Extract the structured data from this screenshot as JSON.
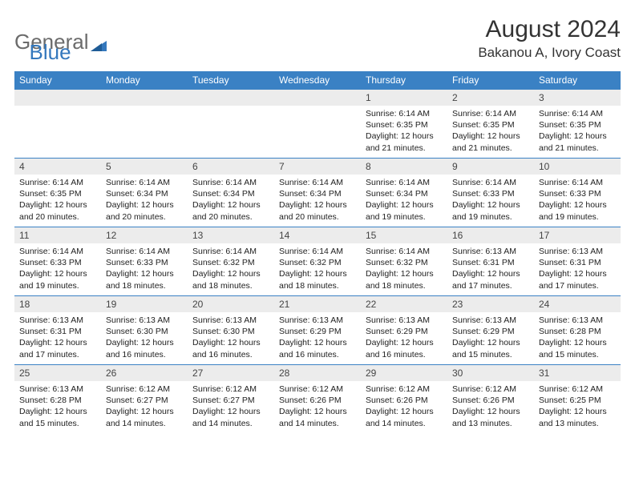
{
  "logo": {
    "text1": "General",
    "text2": "Blue"
  },
  "title": "August 2024",
  "location": "Bakanou A, Ivory Coast",
  "colors": {
    "header_bg": "#3a81c4",
    "header_text": "#ffffff",
    "daynum_bg": "#ececec",
    "border": "#3a81c4",
    "logo_gray": "#6b6b6b",
    "logo_blue": "#3478bd"
  },
  "day_headers": [
    "Sunday",
    "Monday",
    "Tuesday",
    "Wednesday",
    "Thursday",
    "Friday",
    "Saturday"
  ],
  "weeks": [
    [
      null,
      null,
      null,
      null,
      {
        "n": "1",
        "sr": "6:14 AM",
        "ss": "6:35 PM",
        "dl": "12 hours and 21 minutes."
      },
      {
        "n": "2",
        "sr": "6:14 AM",
        "ss": "6:35 PM",
        "dl": "12 hours and 21 minutes."
      },
      {
        "n": "3",
        "sr": "6:14 AM",
        "ss": "6:35 PM",
        "dl": "12 hours and 21 minutes."
      }
    ],
    [
      {
        "n": "4",
        "sr": "6:14 AM",
        "ss": "6:35 PM",
        "dl": "12 hours and 20 minutes."
      },
      {
        "n": "5",
        "sr": "6:14 AM",
        "ss": "6:34 PM",
        "dl": "12 hours and 20 minutes."
      },
      {
        "n": "6",
        "sr": "6:14 AM",
        "ss": "6:34 PM",
        "dl": "12 hours and 20 minutes."
      },
      {
        "n": "7",
        "sr": "6:14 AM",
        "ss": "6:34 PM",
        "dl": "12 hours and 20 minutes."
      },
      {
        "n": "8",
        "sr": "6:14 AM",
        "ss": "6:34 PM",
        "dl": "12 hours and 19 minutes."
      },
      {
        "n": "9",
        "sr": "6:14 AM",
        "ss": "6:33 PM",
        "dl": "12 hours and 19 minutes."
      },
      {
        "n": "10",
        "sr": "6:14 AM",
        "ss": "6:33 PM",
        "dl": "12 hours and 19 minutes."
      }
    ],
    [
      {
        "n": "11",
        "sr": "6:14 AM",
        "ss": "6:33 PM",
        "dl": "12 hours and 19 minutes."
      },
      {
        "n": "12",
        "sr": "6:14 AM",
        "ss": "6:33 PM",
        "dl": "12 hours and 18 minutes."
      },
      {
        "n": "13",
        "sr": "6:14 AM",
        "ss": "6:32 PM",
        "dl": "12 hours and 18 minutes."
      },
      {
        "n": "14",
        "sr": "6:14 AM",
        "ss": "6:32 PM",
        "dl": "12 hours and 18 minutes."
      },
      {
        "n": "15",
        "sr": "6:14 AM",
        "ss": "6:32 PM",
        "dl": "12 hours and 18 minutes."
      },
      {
        "n": "16",
        "sr": "6:13 AM",
        "ss": "6:31 PM",
        "dl": "12 hours and 17 minutes."
      },
      {
        "n": "17",
        "sr": "6:13 AM",
        "ss": "6:31 PM",
        "dl": "12 hours and 17 minutes."
      }
    ],
    [
      {
        "n": "18",
        "sr": "6:13 AM",
        "ss": "6:31 PM",
        "dl": "12 hours and 17 minutes."
      },
      {
        "n": "19",
        "sr": "6:13 AM",
        "ss": "6:30 PM",
        "dl": "12 hours and 16 minutes."
      },
      {
        "n": "20",
        "sr": "6:13 AM",
        "ss": "6:30 PM",
        "dl": "12 hours and 16 minutes."
      },
      {
        "n": "21",
        "sr": "6:13 AM",
        "ss": "6:29 PM",
        "dl": "12 hours and 16 minutes."
      },
      {
        "n": "22",
        "sr": "6:13 AM",
        "ss": "6:29 PM",
        "dl": "12 hours and 16 minutes."
      },
      {
        "n": "23",
        "sr": "6:13 AM",
        "ss": "6:29 PM",
        "dl": "12 hours and 15 minutes."
      },
      {
        "n": "24",
        "sr": "6:13 AM",
        "ss": "6:28 PM",
        "dl": "12 hours and 15 minutes."
      }
    ],
    [
      {
        "n": "25",
        "sr": "6:13 AM",
        "ss": "6:28 PM",
        "dl": "12 hours and 15 minutes."
      },
      {
        "n": "26",
        "sr": "6:12 AM",
        "ss": "6:27 PM",
        "dl": "12 hours and 14 minutes."
      },
      {
        "n": "27",
        "sr": "6:12 AM",
        "ss": "6:27 PM",
        "dl": "12 hours and 14 minutes."
      },
      {
        "n": "28",
        "sr": "6:12 AM",
        "ss": "6:26 PM",
        "dl": "12 hours and 14 minutes."
      },
      {
        "n": "29",
        "sr": "6:12 AM",
        "ss": "6:26 PM",
        "dl": "12 hours and 14 minutes."
      },
      {
        "n": "30",
        "sr": "6:12 AM",
        "ss": "6:26 PM",
        "dl": "12 hours and 13 minutes."
      },
      {
        "n": "31",
        "sr": "6:12 AM",
        "ss": "6:25 PM",
        "dl": "12 hours and 13 minutes."
      }
    ]
  ],
  "labels": {
    "sunrise": "Sunrise:",
    "sunset": "Sunset:",
    "daylight": "Daylight:"
  }
}
